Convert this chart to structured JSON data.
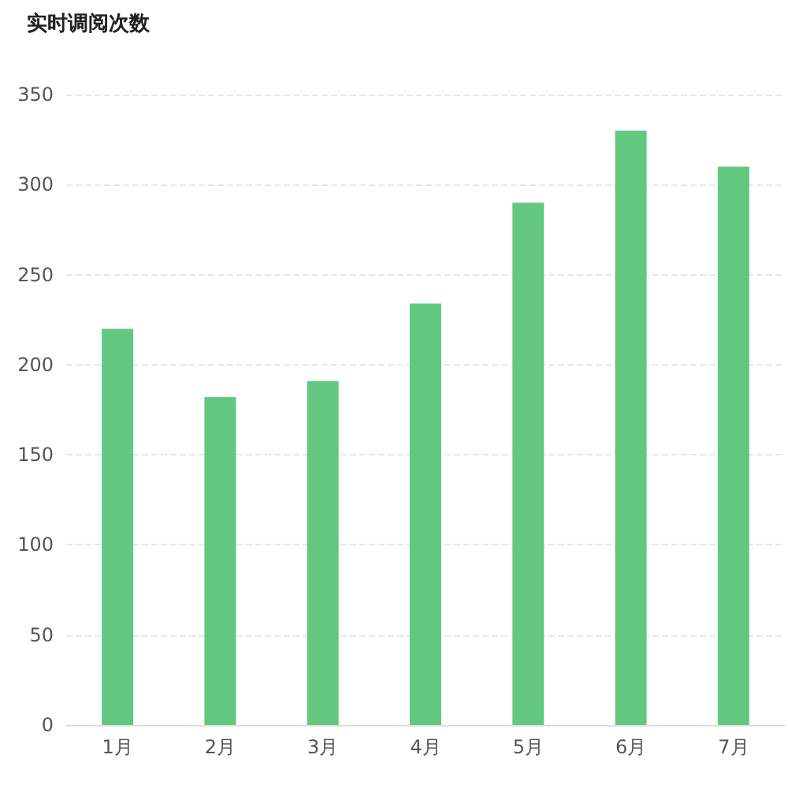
{
  "chart_data": {
    "type": "bar",
    "title": "实时调阅次数",
    "categories": [
      "1月",
      "2月",
      "3月",
      "4月",
      "5月",
      "6月",
      "7月"
    ],
    "values": [
      220,
      182,
      191,
      234,
      290,
      330,
      310
    ],
    "color": "#63c87f",
    "ylim": [
      0,
      350
    ],
    "yticks": [
      0,
      50,
      100,
      150,
      200,
      250,
      300,
      350
    ],
    "grid": "y"
  }
}
